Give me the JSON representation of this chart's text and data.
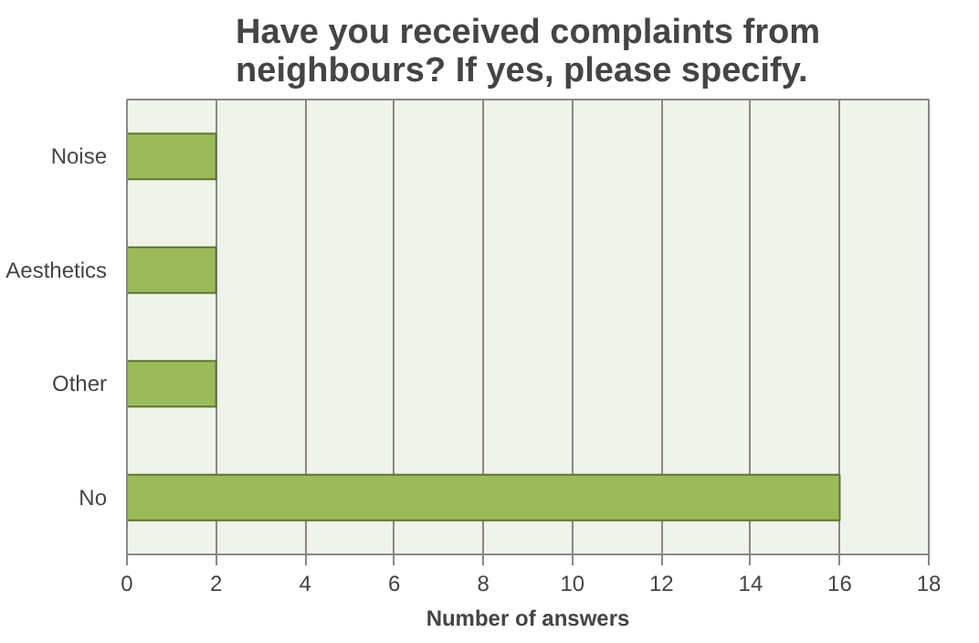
{
  "chart_data": {
    "type": "bar",
    "orientation": "horizontal",
    "title": "Have you received complaints from neighbours? If yes, please specify.",
    "xlabel": "Number of answers",
    "categories": [
      "Noise",
      "Aesthetics",
      "Other",
      "No"
    ],
    "values": [
      2,
      2,
      2,
      16
    ],
    "color": "#9bbb59",
    "xlim": [
      0,
      18
    ],
    "xticks": [
      0,
      2,
      4,
      6,
      8,
      10,
      12,
      14,
      16,
      18
    ],
    "grid": "x"
  }
}
